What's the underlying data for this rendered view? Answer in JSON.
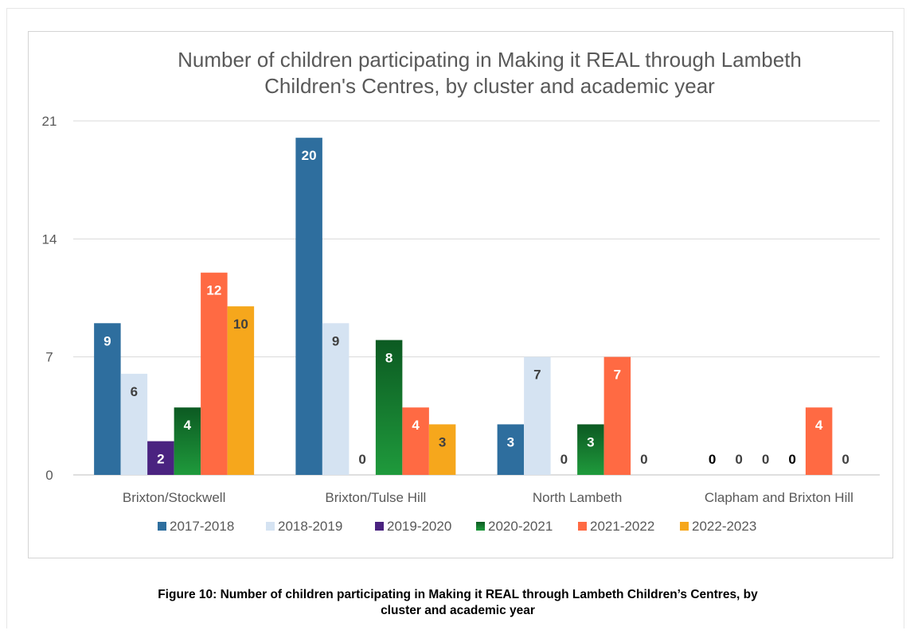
{
  "chart_data": {
    "type": "bar",
    "title_lines": [
      "Number of children participating in Making it REAL through Lambeth",
      "Children's Centres, by cluster and academic year"
    ],
    "categories": [
      "Brixton/Stockwell",
      "Brixton/Tulse Hill",
      "North Lambeth",
      "Clapham and Brixton Hill"
    ],
    "series": [
      {
        "name": "2017-2018",
        "color": "#2e6e9e",
        "label_color": "#ffffff",
        "values": [
          9,
          20,
          3,
          0
        ],
        "label_on_bar": [
          true,
          true,
          true,
          false
        ]
      },
      {
        "name": "2018-2019",
        "color": "#d5e3f2",
        "label_color": "#404040",
        "values": [
          6,
          9,
          7,
          0
        ],
        "label_on_bar": [
          true,
          true,
          true,
          false
        ]
      },
      {
        "name": "2019-2020",
        "color": "#4a2380",
        "label_color": "#ffffff",
        "values": [
          2,
          0,
          0,
          0
        ],
        "label_on_bar": [
          true,
          false,
          false,
          false
        ]
      },
      {
        "name": "2020-2021",
        "color": "#1f9a3c",
        "color_top": "#0c5a22",
        "label_color": "#ffffff",
        "values": [
          4,
          8,
          3,
          0
        ],
        "label_on_bar": [
          true,
          true,
          true,
          false
        ]
      },
      {
        "name": "2021-2022",
        "color": "#ff6a43",
        "label_color": "#ffffff",
        "values": [
          12,
          4,
          7,
          4
        ],
        "label_on_bar": [
          true,
          true,
          true,
          true
        ]
      },
      {
        "name": "2022-2023",
        "color": "#f6a71c",
        "label_color": "#404040",
        "values": [
          10,
          3,
          0,
          0
        ],
        "label_on_bar": [
          true,
          true,
          false,
          false
        ]
      }
    ],
    "ylim": [
      0,
      21
    ],
    "yticks": [
      0,
      7,
      14,
      21
    ],
    "grid": true,
    "legend_position": "bottom"
  },
  "caption": {
    "line1": "Figure 10: Number of children participating in Making it REAL through Lambeth Children’s Centres, by",
    "line2": "cluster and academic year"
  }
}
